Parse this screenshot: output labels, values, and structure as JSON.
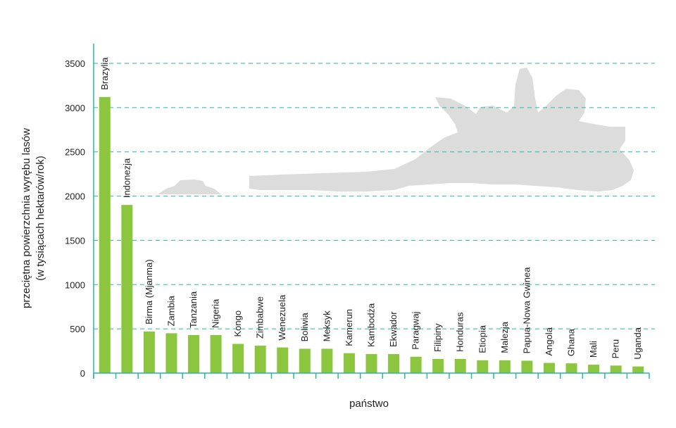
{
  "chart_data": {
    "type": "bar",
    "ylabel_line1": "przeciętna powierzchnia wyrębu lasów",
    "ylabel_line2": "(w tysiącach hektarów/rok)",
    "xlabel": "państwo",
    "ylim": [
      0,
      3700
    ],
    "yticks": [
      0,
      500,
      1000,
      1500,
      2000,
      2500,
      3000,
      3500
    ],
    "grid": true,
    "categories": [
      "Brazylia",
      "Indonezja",
      "Birma (Mjanma)",
      "Zambia",
      "Tanzania",
      "Nigeria",
      "Kongo",
      "Zimbabwe",
      "Wenezuela",
      "Boliwia",
      "Meksyk",
      "Kamerun",
      "Kambodża",
      "Ekwador",
      "Paragwaj",
      "Filipiny",
      "Honduras",
      "Etiopia",
      "Malezja",
      "Papua-Nowa Gwinea",
      "Angola",
      "Ghana",
      "Mali",
      "Peru",
      "Uganda"
    ],
    "values": [
      3120,
      1900,
      470,
      450,
      430,
      430,
      330,
      310,
      290,
      275,
      275,
      225,
      215,
      215,
      185,
      160,
      160,
      145,
      145,
      140,
      115,
      110,
      95,
      85,
      75
    ]
  },
  "colors": {
    "bar": "#8cc63f",
    "axis": "#2bb5a0",
    "grid": "#2bb5a0",
    "decoration": "#dcdcdc"
  },
  "decoration_icon": "palm-leaves-silhouette"
}
